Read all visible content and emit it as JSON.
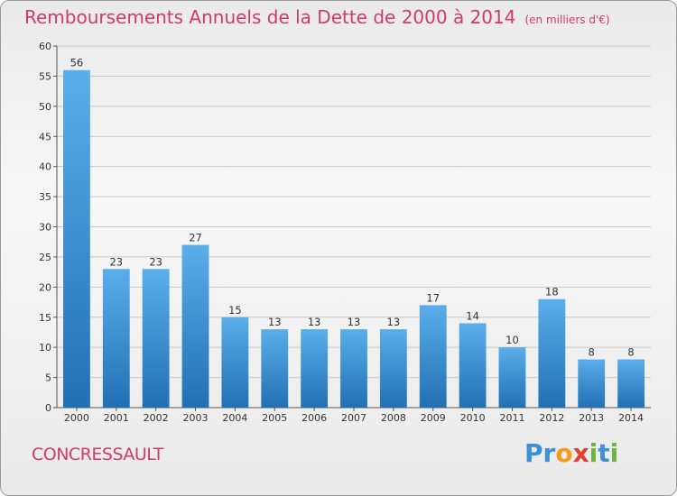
{
  "header": {
    "title": "Remboursements Annuels de la Dette de 2000 à 2014",
    "unit": "(en milliers d'€)"
  },
  "footer": {
    "commune": "CONCRESSAULT",
    "logo": "Proxiti"
  },
  "colors": {
    "title": "#d03a6c",
    "bar_top": "#5aaeea",
    "bar_bottom": "#2170b4",
    "grid": "#c8c8c8"
  },
  "chart_data": {
    "type": "bar",
    "title": "Remboursements Annuels de la Dette de 2000 à 2014",
    "subtitle": "(en milliers d'€)",
    "xlabel": "",
    "ylabel": "",
    "categories": [
      "2000",
      "2001",
      "2002",
      "2003",
      "2004",
      "2005",
      "2006",
      "2007",
      "2008",
      "2009",
      "2010",
      "2011",
      "2012",
      "2013",
      "2014"
    ],
    "values": [
      56,
      23,
      23,
      27,
      15,
      13,
      13,
      13,
      13,
      17,
      14,
      10,
      18,
      8,
      8
    ],
    "ylim": [
      0,
      60
    ],
    "yticks": [
      0,
      5,
      10,
      15,
      20,
      25,
      30,
      35,
      40,
      45,
      50,
      55,
      60
    ],
    "grid": true,
    "data_labels": true
  }
}
